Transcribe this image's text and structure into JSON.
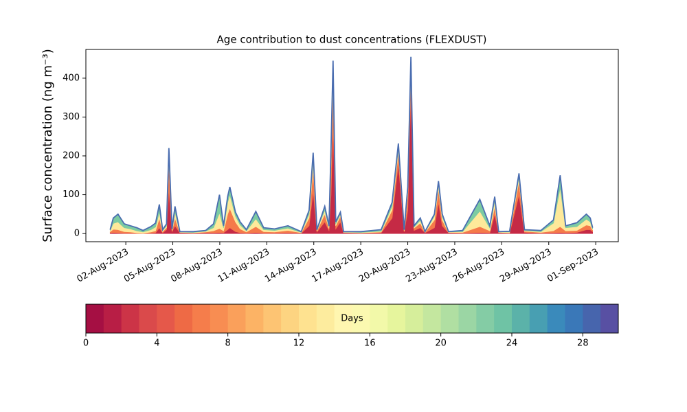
{
  "chart_data": {
    "type": "stacked_area",
    "title": "Age contribution to dust concentrations (FLEXDUST)",
    "y_label": "Surface concentration (ng m⁻³)",
    "x": [
      1.0,
      1.2,
      1.5,
      1.9,
      2.3,
      2.7,
      3.1,
      3.6,
      3.9,
      4.14,
      4.35,
      4.6,
      4.75,
      4.95,
      5.14,
      5.45,
      6.3,
      7.1,
      7.6,
      7.98,
      8.24,
      8.5,
      8.64,
      9.0,
      9.3,
      9.7,
      10.3,
      10.8,
      11.5,
      12.35,
      13.2,
      13.7,
      13.96,
      14.2,
      14.7,
      14.97,
      15.1,
      15.23,
      15.4,
      15.7,
      15.9,
      17.0,
      18.3,
      19.0,
      19.4,
      19.77,
      20.0,
      20.2,
      20.4,
      20.8,
      21.1,
      21.7,
      21.96,
      22.2,
      22.6,
      23.5,
      24.6,
      25.24,
      25.55,
      25.8,
      26.5,
      27.1,
      27.45,
      28.5,
      29.3,
      29.73,
      30.08,
      30.8,
      31.4,
      31.65,
      31.8
    ],
    "series": [
      {
        "color": "#c52a45",
        "values": [
          2,
          3,
          2,
          1,
          1,
          0,
          0,
          1,
          2,
          15,
          2,
          10,
          115,
          5,
          20,
          2,
          1,
          2,
          2,
          3,
          2,
          10,
          15,
          5,
          2,
          1,
          3,
          1,
          1,
          2,
          1,
          20,
          110,
          4,
          30,
          8,
          100,
          290,
          12,
          30,
          2,
          1,
          2,
          40,
          180,
          4,
          60,
          370,
          8,
          15,
          2,
          15,
          80,
          20,
          2,
          1,
          3,
          2,
          50,
          2,
          1,
          100,
          3,
          1,
          2,
          3,
          2,
          3,
          10,
          10,
          5
        ]
      },
      {
        "color": "#f57a4a",
        "values": [
          3,
          8,
          8,
          4,
          3,
          2,
          1,
          3,
          5,
          25,
          3,
          5,
          70,
          3,
          20,
          1,
          1,
          2,
          5,
          10,
          5,
          40,
          50,
          25,
          10,
          3,
          15,
          4,
          3,
          6,
          1,
          20,
          60,
          3,
          20,
          5,
          80,
          90,
          8,
          15,
          1,
          1,
          2,
          20,
          30,
          3,
          40,
          45,
          6,
          12,
          1,
          20,
          35,
          15,
          1,
          2,
          15,
          5,
          20,
          1,
          1,
          35,
          3,
          2,
          5,
          15,
          5,
          5,
          12,
          10,
          4
        ]
      },
      {
        "color": "#fee99a",
        "values": [
          3,
          15,
          20,
          10,
          8,
          5,
          3,
          6,
          10,
          15,
          3,
          5,
          15,
          2,
          15,
          1,
          1,
          2,
          8,
          40,
          8,
          30,
          35,
          15,
          10,
          3,
          20,
          5,
          4,
          6,
          1,
          10,
          18,
          2,
          10,
          4,
          20,
          30,
          5,
          5,
          1,
          1,
          2,
          10,
          10,
          2,
          10,
          20,
          3,
          7,
          1,
          10,
          10,
          8,
          1,
          2,
          40,
          7,
          15,
          1,
          2,
          10,
          2,
          2,
          20,
          100,
          8,
          10,
          15,
          10,
          3
        ]
      },
      {
        "color": "#7ccba2",
        "values": [
          2,
          14,
          20,
          10,
          8,
          8,
          4,
          8,
          10,
          20,
          2,
          5,
          20,
          2,
          15,
          1,
          2,
          2,
          10,
          47,
          5,
          15,
          20,
          10,
          8,
          3,
          19,
          5,
          4,
          6,
          2,
          10,
          20,
          1,
          10,
          3,
          20,
          35,
          5,
          5,
          1,
          2,
          4,
          10,
          12,
          1,
          10,
          20,
          3,
          6,
          1,
          5,
          10,
          7,
          1,
          3,
          30,
          6,
          10,
          1,
          2,
          10,
          2,
          3,
          8,
          32,
          5,
          10,
          13,
          10,
          3
        ]
      }
    ],
    "outline_color": "#4a6db0",
    "xlim": [
      -0.55,
      33.44
    ],
    "xticks": [
      {
        "value": 2,
        "label": "02-Aug-2023"
      },
      {
        "value": 5,
        "label": "05-Aug-2023"
      },
      {
        "value": 8,
        "label": "08-Aug-2023"
      },
      {
        "value": 11,
        "label": "11-Aug-2023"
      },
      {
        "value": 14,
        "label": "14-Aug-2023"
      },
      {
        "value": 17,
        "label": "17-Aug-2023"
      },
      {
        "value": 20,
        "label": "20-Aug-2023"
      },
      {
        "value": 23,
        "label": "23-Aug-2023"
      },
      {
        "value": 26,
        "label": "26-Aug-2023"
      },
      {
        "value": 29,
        "label": "29-Aug-2023"
      },
      {
        "value": 32,
        "label": "01-Sep-2023"
      }
    ],
    "ylim": [
      -21,
      474
    ],
    "yticks": [
      0,
      100,
      200,
      300,
      400
    ],
    "colorbar": {
      "label": "Days",
      "lim": [
        0,
        30
      ],
      "ticks": [
        0,
        4,
        8,
        12,
        16,
        20,
        24,
        28
      ],
      "colors": [
        "#a50f43",
        "#b81e45",
        "#cc3447",
        "#da4a4b",
        "#e5584a",
        "#ee6a45",
        "#f57d4b",
        "#f88d52",
        "#faa05b",
        "#fcb365",
        "#fdc473",
        "#fdd481",
        "#fee290",
        "#fdec9e",
        "#fff6b0",
        "#fbf9b0",
        "#f2f9a9",
        "#e6f59d",
        "#d6ee9b",
        "#c4e79f",
        "#b0dfa2",
        "#9bd6a4",
        "#84cca5",
        "#6fc3a5",
        "#5bb2a9",
        "#489fb2",
        "#3a8abb",
        "#3a78b8",
        "#4765ad",
        "#5850a3"
      ]
    }
  }
}
